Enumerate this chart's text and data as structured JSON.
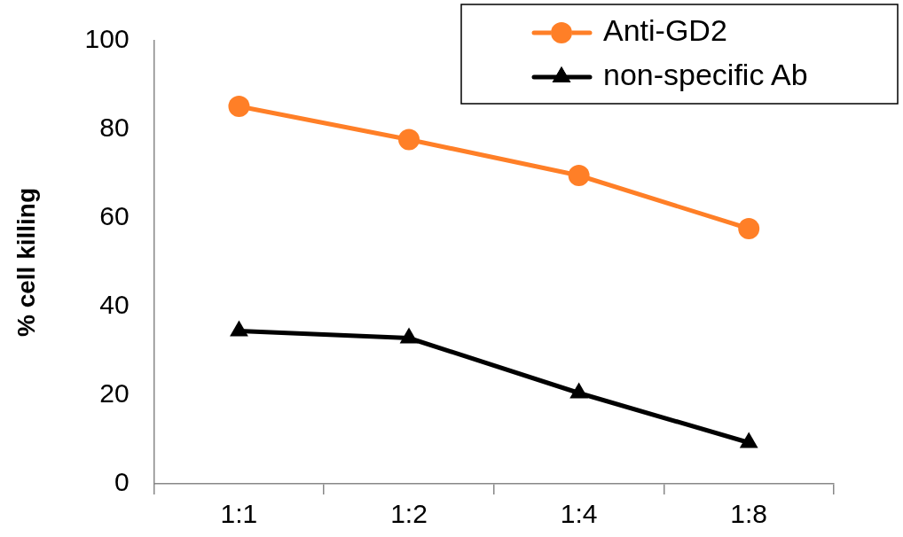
{
  "chart_data": {
    "type": "line",
    "ylabel": "% cell killing",
    "categories": [
      "1:1",
      "1:2",
      "1:4",
      "1:8"
    ],
    "series": [
      {
        "name": "Anti-GD2",
        "color": "#ff7f27",
        "marker": "circle",
        "values": [
          85.2,
          77.7,
          69.6,
          57.6
        ]
      },
      {
        "name": "non-specific Ab",
        "color": "#000000",
        "marker": "triangle",
        "values": [
          34.5,
          32.9,
          20.5,
          9.3
        ]
      }
    ],
    "ylim": [
      0,
      100
    ],
    "yticks": [
      0,
      20,
      40,
      60,
      80,
      100
    ],
    "grid": false,
    "legend": "top right",
    "line_style": "solid"
  }
}
